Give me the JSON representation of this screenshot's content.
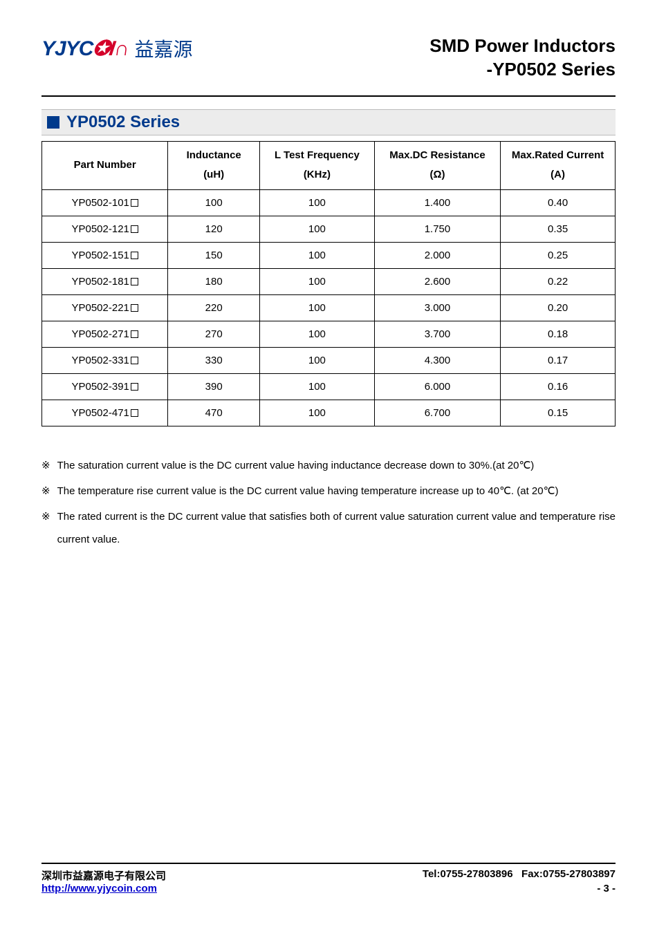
{
  "header": {
    "logo_en": "YJYC",
    "logo_red": "✪I∩",
    "logo_cn": "益嘉源",
    "title_line1": "SMD Power Inductors",
    "title_line2": "-YP0502 Series"
  },
  "section": {
    "title": "YP0502 Series"
  },
  "table": {
    "columns": [
      {
        "line1": "Part Number",
        "line2": ""
      },
      {
        "line1": "Inductance",
        "line2": "(uH)"
      },
      {
        "line1": "L Test Frequency",
        "line2": "(KHz)"
      },
      {
        "line1": "Max.DC Resistance",
        "line2": "(Ω)"
      },
      {
        "line1": "Max.Rated Current",
        "line2": "(A)"
      }
    ],
    "col_widths": [
      "22%",
      "16%",
      "20%",
      "22%",
      "20%"
    ],
    "rows": [
      {
        "pn": "YP0502-101",
        "ind": "100",
        "freq": "100",
        "dcr": "1.400",
        "cur": "0.40"
      },
      {
        "pn": "YP0502-121",
        "ind": "120",
        "freq": "100",
        "dcr": "1.750",
        "cur": "0.35"
      },
      {
        "pn": "YP0502-151",
        "ind": "150",
        "freq": "100",
        "dcr": "2.000",
        "cur": "0.25"
      },
      {
        "pn": "YP0502-181",
        "ind": "180",
        "freq": "100",
        "dcr": "2.600",
        "cur": "0.22"
      },
      {
        "pn": "YP0502-221",
        "ind": "220",
        "freq": "100",
        "dcr": "3.000",
        "cur": "0.20"
      },
      {
        "pn": "YP0502-271",
        "ind": "270",
        "freq": "100",
        "dcr": "3.700",
        "cur": "0.18"
      },
      {
        "pn": "YP0502-331",
        "ind": "330",
        "freq": "100",
        "dcr": "4.300",
        "cur": "0.17"
      },
      {
        "pn": "YP0502-391",
        "ind": "390",
        "freq": "100",
        "dcr": "6.000",
        "cur": "0.16"
      },
      {
        "pn": "YP0502-471",
        "ind": "470",
        "freq": "100",
        "dcr": "6.700",
        "cur": "0.15"
      }
    ]
  },
  "notes": {
    "mark": "※",
    "items": [
      "The saturation current value is the DC current value having inductance decrease down to 30%.(at 20℃)",
      "The temperature rise current value is the DC current value having temperature increase up to 40℃. (at 20℃)",
      "The rated current is the DC current value that satisfies both of current value saturation current value and temperature rise current value."
    ]
  },
  "footer": {
    "company": "深圳市益嘉源电子有限公司",
    "tel_fax": "Tel:0755-27803896   Fax:0755-27803897",
    "url": "http://www.yjycoin.com",
    "page": "- 3 -"
  }
}
